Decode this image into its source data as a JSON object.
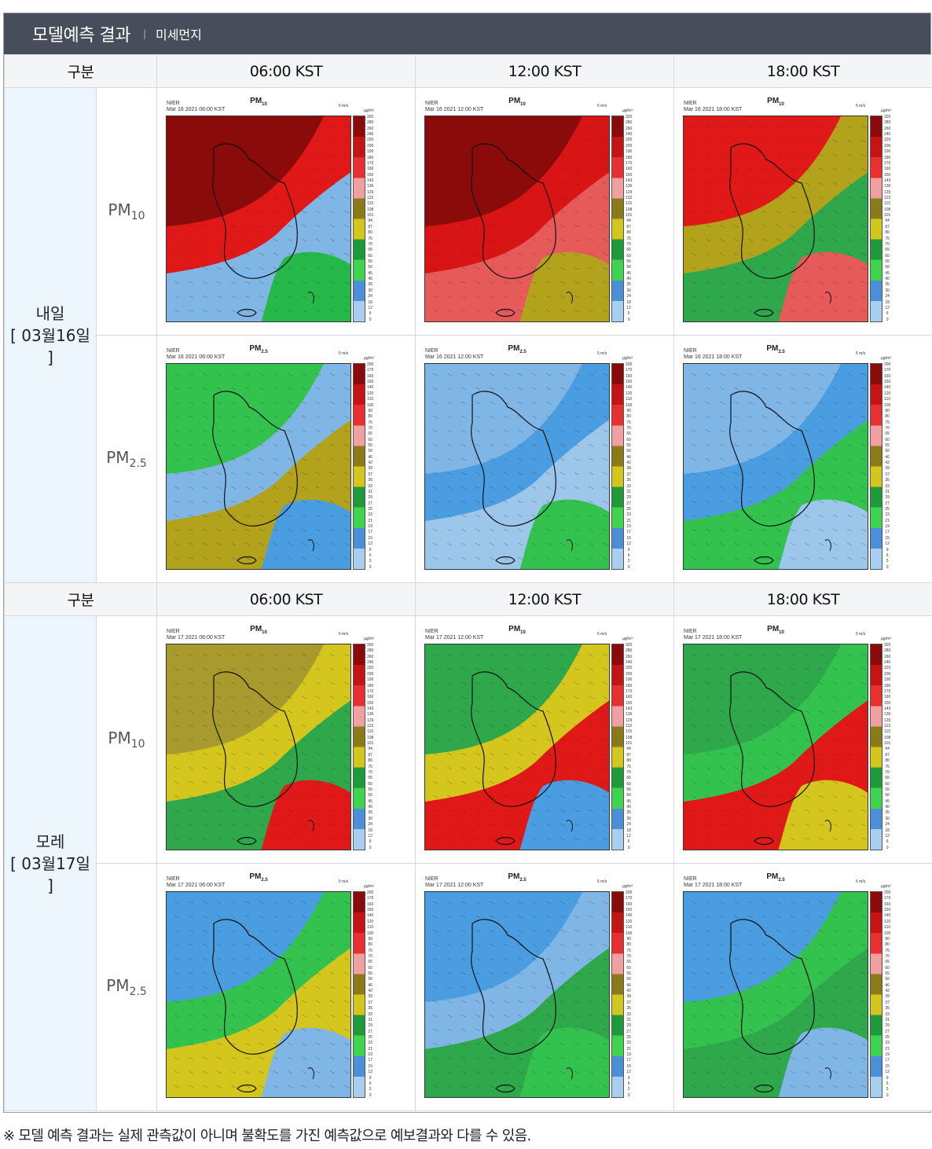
{
  "header": {
    "title": "모델예측 결과",
    "separator": "|",
    "subtitle": "미세먼지"
  },
  "columns": {
    "category": "구분",
    "times": [
      "06:00 KST",
      "12:00 KST",
      "18:00 KST"
    ]
  },
  "days": [
    {
      "label": "내일",
      "date": "[ 03월16일 ]",
      "rows": [
        {
          "pm_main": "PM",
          "pm_sub": "10",
          "maps": [
            {
              "source": "NIER",
              "timestamp": "Mar 16 2021 06:00 KST",
              "title": "PM",
              "title_sub": "10",
              "fill": [
                "#8b0a0a",
                "#e01818",
                "#27b84a",
                "#7fb6e6"
              ]
            },
            {
              "source": "NIER",
              "timestamp": "Mar 16 2021 12:00 KST",
              "title": "PM",
              "title_sub": "10",
              "fill": [
                "#8b0a0a",
                "#d81414",
                "#b3a31c",
                "#e75a5a"
              ]
            },
            {
              "source": "NIER",
              "timestamp": "Mar 16 2021 18:00 KST",
              "title": "PM",
              "title_sub": "10",
              "fill": [
                "#e01818",
                "#b3a31c",
                "#e75a5a",
                "#2ea84a"
              ]
            }
          ]
        },
        {
          "pm_main": "PM",
          "pm_sub": "2.5",
          "maps": [
            {
              "source": "NIER",
              "timestamp": "Mar 16 2021 06:00 KST",
              "title": "PM",
              "title_sub": "2.5",
              "fill": [
                "#34c24f",
                "#7fb6e6",
                "#4a9de0",
                "#b3a31c"
              ]
            },
            {
              "source": "NIER",
              "timestamp": "Mar 16 2021 12:00 KST",
              "title": "PM",
              "title_sub": "2.5",
              "fill": [
                "#7fb6e6",
                "#4a9de0",
                "#34c24f",
                "#9cc6ea"
              ]
            },
            {
              "source": "NIER",
              "timestamp": "Mar 16 2021 18:00 KST",
              "title": "PM",
              "title_sub": "2.5",
              "fill": [
                "#7fb6e6",
                "#4a9de0",
                "#9cc6ea",
                "#34c24f"
              ]
            }
          ]
        }
      ]
    },
    {
      "label": "모레",
      "date": "[ 03월17일 ]",
      "rows": [
        {
          "pm_main": "PM",
          "pm_sub": "10",
          "maps": [
            {
              "source": "NIER",
              "timestamp": "Mar 17 2021 06:00 KST",
              "title": "PM",
              "title_sub": "10",
              "fill": [
                "#a89a2c",
                "#d4c61c",
                "#e01818",
                "#2ea84a"
              ]
            },
            {
              "source": "NIER",
              "timestamp": "Mar 17 2021 12:00 KST",
              "title": "PM",
              "title_sub": "10",
              "fill": [
                "#2ea84a",
                "#d4c61c",
                "#4a9de0",
                "#e01818"
              ]
            },
            {
              "source": "NIER",
              "timestamp": "Mar 17 2021 18:00 KST",
              "title": "PM",
              "title_sub": "10",
              "fill": [
                "#2ea84a",
                "#34c24f",
                "#d4c61c",
                "#e01818"
              ]
            }
          ]
        },
        {
          "pm_main": "PM",
          "pm_sub": "2.5",
          "maps": [
            {
              "source": "NIER",
              "timestamp": "Mar 17 2021 06:00 KST",
              "title": "PM",
              "title_sub": "2.5",
              "fill": [
                "#4a9de0",
                "#34c24f",
                "#7fb6e6",
                "#d4c61c"
              ]
            },
            {
              "source": "NIER",
              "timestamp": "Mar 17 2021 12:00 KST",
              "title": "PM",
              "title_sub": "2.5",
              "fill": [
                "#4a9de0",
                "#7fb6e6",
                "#34c24f",
                "#2ea84a"
              ]
            },
            {
              "source": "NIER",
              "timestamp": "Mar 17 2021 18:00 KST",
              "title": "PM",
              "title_sub": "2.5",
              "fill": [
                "#4a9de0",
                "#34c24f",
                "#7fb6e6",
                "#2ea84a"
              ]
            }
          ]
        }
      ]
    }
  ],
  "legend": {
    "scale_label": "5 m/s",
    "unit": "µg/m³",
    "pm10_ticks": [
      "320",
      "280",
      "260",
      "240",
      "220",
      "200",
      "190",
      "180",
      "170",
      "160",
      "150",
      "143",
      "136",
      "129",
      "122",
      "115",
      "108",
      "101",
      "94",
      "87",
      "80",
      "75",
      "70",
      "65",
      "60",
      "55",
      "50",
      "45",
      "40",
      "35",
      "30",
      "24",
      "18",
      "12",
      "6",
      "0"
    ],
    "pm25_ticks": [
      "200",
      "170",
      "160",
      "150",
      "140",
      "120",
      "110",
      "100",
      "90",
      "80",
      "75",
      "70",
      "65",
      "60",
      "55",
      "50",
      "46",
      "42",
      "39",
      "37",
      "35",
      "33",
      "31",
      "29",
      "27",
      "25",
      "23",
      "21",
      "19",
      "17",
      "15",
      "12",
      "9",
      "6",
      "3",
      "0"
    ],
    "colors": [
      "#8b0a0a",
      "#c41414",
      "#e83030",
      "#f0a0a0",
      "#8a7a18",
      "#d4c61c",
      "#1f9a3a",
      "#3fd34f",
      "#4a8fd8",
      "#a8cff0"
    ]
  },
  "footnote": "※ 모델 예측 결과는 실제 관측값이 아니며 불확도를 가진 예측값으로 예보결과와 다를 수 있음."
}
